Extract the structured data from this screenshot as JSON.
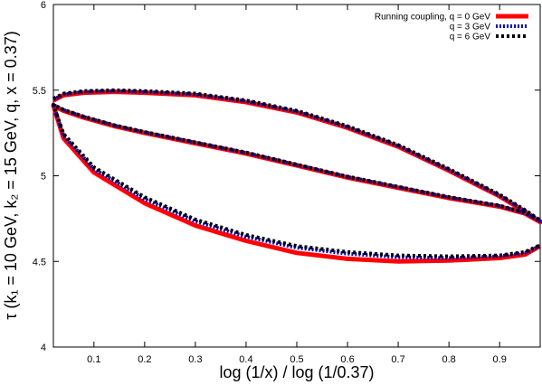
{
  "chart_data": {
    "type": "line",
    "xlabel": "log (1/x) / log (1/0.37)",
    "ylabel": "τ (k₁ = 10 GeV, k₂ = 15 GeV, q, x = 0.37)",
    "xlim": [
      0.02,
      0.98
    ],
    "ylim": [
      4,
      6
    ],
    "x_ticks": [
      0.1,
      0.2,
      0.3,
      0.4,
      0.5,
      0.6,
      0.7,
      0.8,
      0.9
    ],
    "x_tick_labels": [
      "0.1",
      "0.2",
      "0.3",
      "0.4",
      "0.5",
      "0.6",
      "0.7",
      "0.8",
      "0.9"
    ],
    "y_ticks": [
      4,
      4.5,
      5,
      5.5,
      6
    ],
    "y_tick_labels": [
      "4",
      "4.5",
      "5",
      "5.5",
      "6"
    ],
    "grid": false,
    "legend_position": "top-right",
    "series": [
      {
        "name": "Running coupling, q = 0 GeV",
        "color": "#ff0000",
        "style": "solid",
        "x": [
          0.02,
          0.04,
          0.08,
          0.14,
          0.2,
          0.3,
          0.4,
          0.5,
          0.6,
          0.7,
          0.8,
          0.86,
          0.9,
          0.95,
          0.98,
          0.95,
          0.9,
          0.8,
          0.7,
          0.6,
          0.5,
          0.4,
          0.3,
          0.2,
          0.14,
          0.08,
          0.04,
          0.02,
          0.04,
          0.1,
          0.2,
          0.3,
          0.4,
          0.5,
          0.6,
          0.7,
          0.8,
          0.9,
          0.95,
          0.98
        ],
        "y": [
          5.44,
          5.47,
          5.485,
          5.49,
          5.485,
          5.47,
          5.43,
          5.37,
          5.28,
          5.17,
          5.03,
          4.94,
          4.88,
          4.79,
          4.73,
          4.78,
          4.82,
          4.87,
          4.93,
          4.99,
          5.06,
          5.13,
          5.19,
          5.25,
          5.29,
          5.34,
          5.38,
          5.41,
          5.22,
          5.02,
          4.84,
          4.71,
          4.62,
          4.55,
          4.515,
          4.5,
          4.505,
          4.52,
          4.54,
          4.59
        ]
      },
      {
        "name": "q = 3 GeV",
        "color": "#0000cc",
        "style": "dotted",
        "x": [
          0.02,
          0.04,
          0.08,
          0.14,
          0.2,
          0.3,
          0.4,
          0.5,
          0.6,
          0.7,
          0.8,
          0.86,
          0.9,
          0.95,
          0.98,
          0.95,
          0.9,
          0.8,
          0.7,
          0.6,
          0.5,
          0.4,
          0.3,
          0.2,
          0.14,
          0.08,
          0.04,
          0.02,
          0.04,
          0.1,
          0.2,
          0.3,
          0.4,
          0.5,
          0.6,
          0.7,
          0.8,
          0.9,
          0.95,
          0.98
        ],
        "y": [
          5.445,
          5.475,
          5.49,
          5.495,
          5.49,
          5.475,
          5.435,
          5.375,
          5.285,
          5.175,
          5.035,
          4.945,
          4.885,
          4.795,
          4.735,
          4.782,
          4.824,
          4.874,
          4.934,
          4.994,
          5.064,
          5.134,
          5.194,
          5.254,
          5.294,
          5.344,
          5.384,
          5.414,
          5.235,
          5.04,
          4.865,
          4.735,
          4.645,
          4.58,
          4.545,
          4.525,
          4.52,
          4.53,
          4.55,
          4.59
        ]
      },
      {
        "name": "q = 6 GeV",
        "color": "#000000",
        "style": "dashed",
        "x": [
          0.02,
          0.04,
          0.08,
          0.14,
          0.2,
          0.3,
          0.4,
          0.5,
          0.6,
          0.7,
          0.8,
          0.86,
          0.9,
          0.95,
          0.98,
          0.95,
          0.9,
          0.8,
          0.7,
          0.6,
          0.5,
          0.4,
          0.3,
          0.2,
          0.14,
          0.08,
          0.04,
          0.02,
          0.04,
          0.1,
          0.2,
          0.3,
          0.4,
          0.5,
          0.6,
          0.7,
          0.8,
          0.9,
          0.95,
          0.98
        ],
        "y": [
          5.45,
          5.48,
          5.495,
          5.5,
          5.495,
          5.48,
          5.44,
          5.38,
          5.29,
          5.18,
          5.04,
          4.95,
          4.89,
          4.8,
          4.74,
          4.785,
          4.826,
          4.876,
          4.936,
          4.996,
          5.066,
          5.136,
          5.196,
          5.256,
          5.296,
          5.346,
          5.386,
          5.416,
          5.245,
          5.05,
          4.875,
          4.745,
          4.655,
          4.59,
          4.555,
          4.535,
          4.53,
          4.535,
          4.555,
          4.595
        ]
      }
    ]
  }
}
